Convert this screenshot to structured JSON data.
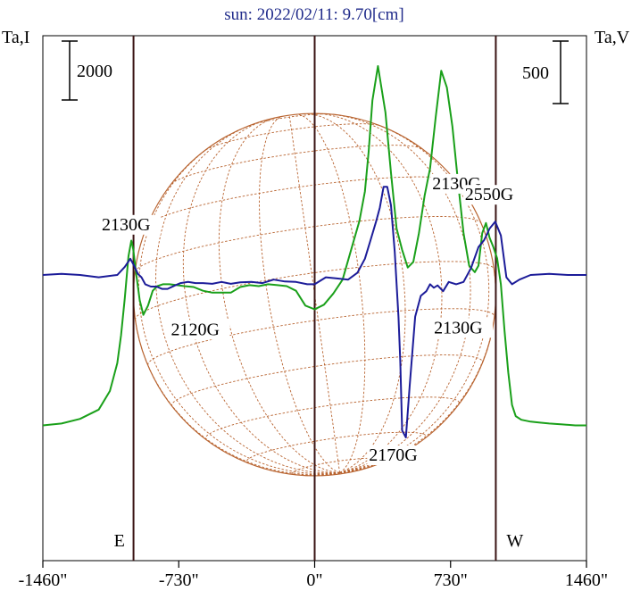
{
  "chart_data": {
    "type": "line",
    "title": "sun: 2022/02/11: 9.70[cm]",
    "left_axis_label": "Ta,I",
    "right_axis_label": "Ta,V",
    "scale_bar_left": "2000",
    "scale_bar_right": "500",
    "xlim": [
      -1460,
      1460
    ],
    "x_ticks": [
      -1460,
      -730,
      0,
      730,
      1460
    ],
    "x_tick_labels": [
      "-1460\"",
      "-730\"",
      "0\"",
      "730\"",
      "1460\""
    ],
    "limb_lines_x": [
      -973,
      0,
      973
    ],
    "limb_labels": {
      "east": "E",
      "west": "W"
    },
    "solar_disk": {
      "center_x": 0,
      "radius": 973,
      "color": "#b8632f"
    },
    "series": [
      {
        "name": "I",
        "color": "#1aa01a",
        "x": [
          -1460,
          -1360,
          -1260,
          -1160,
          -1100,
          -1060,
          -1040,
          -1020,
          -1000,
          -985,
          -975,
          -960,
          -940,
          -920,
          -895,
          -870,
          -845,
          -815,
          -780,
          -740,
          -700,
          -650,
          -600,
          -550,
          -500,
          -450,
          -400,
          -350,
          -300,
          -250,
          -200,
          -150,
          -100,
          -50,
          0,
          50,
          100,
          150,
          200,
          240,
          270,
          290,
          310,
          340,
          380,
          410,
          440,
          470,
          500,
          530,
          560,
          590,
          620,
          650,
          680,
          710,
          740,
          770,
          800,
          830,
          860,
          880,
          900,
          920,
          940,
          960,
          980,
          1000,
          1020,
          1040,
          1060,
          1080,
          1110,
          1160,
          1210,
          1260,
          1330,
          1400,
          1460
        ],
        "y": [
          -1620,
          -1600,
          -1550,
          -1450,
          -1250,
          -950,
          -650,
          -250,
          200,
          370,
          280,
          30,
          -270,
          -430,
          -330,
          -170,
          -120,
          -100,
          -100,
          -110,
          -120,
          -130,
          -170,
          -190,
          -190,
          -190,
          -130,
          -110,
          -120,
          -100,
          -110,
          -120,
          -170,
          -330,
          -370,
          -320,
          -200,
          -50,
          300,
          580,
          900,
          1330,
          1880,
          2250,
          1750,
          1100,
          500,
          270,
          80,
          140,
          450,
          850,
          1150,
          1700,
          2200,
          2020,
          1600,
          1000,
          450,
          100,
          30,
          100,
          450,
          560,
          400,
          300,
          180,
          -100,
          -600,
          -1050,
          -1400,
          -1520,
          -1560,
          -1580,
          -1590,
          -1600,
          -1610,
          -1620,
          -1620
        ]
      },
      {
        "name": "V",
        "color": "#1c1c99",
        "x": [
          -1460,
          -1360,
          -1260,
          -1160,
          -1060,
          -1020,
          -990,
          -970,
          -950,
          -930,
          -910,
          -880,
          -850,
          -820,
          -790,
          -750,
          -720,
          -680,
          -640,
          -600,
          -550,
          -500,
          -450,
          -400,
          -340,
          -280,
          -220,
          -160,
          -100,
          -40,
          0,
          60,
          120,
          180,
          230,
          270,
          300,
          330,
          350,
          370,
          390,
          410,
          430,
          450,
          460,
          470,
          490,
          510,
          540,
          570,
          600,
          620,
          640,
          660,
          690,
          720,
          760,
          800,
          840,
          880,
          910,
          940,
          970,
          1000,
          1030,
          1060,
          1100,
          1160,
          1260,
          1360,
          1460
        ],
        "y": [
          0,
          5,
          0,
          -10,
          0,
          35,
          70,
          40,
          5,
          -10,
          -40,
          -50,
          -50,
          -60,
          -60,
          -45,
          -35,
          -30,
          -35,
          -35,
          -38,
          -30,
          -38,
          -32,
          -30,
          -35,
          -20,
          -28,
          -30,
          -40,
          -40,
          -10,
          -15,
          -20,
          10,
          70,
          150,
          230,
          290,
          380,
          380,
          300,
          100,
          -180,
          -370,
          -670,
          -700,
          -480,
          -180,
          -90,
          -70,
          -40,
          -55,
          -45,
          -70,
          -30,
          -40,
          -30,
          30,
          120,
          150,
          200,
          230,
          170,
          -10,
          -40,
          -20,
          0,
          5,
          0,
          0
        ]
      }
    ],
    "annotations": [
      {
        "text": "2130G",
        "x": -1000,
        "y_ref": "V",
        "y": 70
      },
      {
        "text": "2120G",
        "x": -868,
        "y_ref": "V",
        "y": -90
      },
      {
        "text": "2130G",
        "x": 325,
        "y_ref": "V",
        "y": 285
      },
      {
        "text": "2550G",
        "x": 970,
        "y_ref": "V",
        "y": 230
      },
      {
        "text": "2130G",
        "x": 650,
        "y_ref": "V",
        "y": -90
      },
      {
        "text": "2170G",
        "x": 445,
        "y_ref": "V",
        "y": -700
      }
    ]
  }
}
